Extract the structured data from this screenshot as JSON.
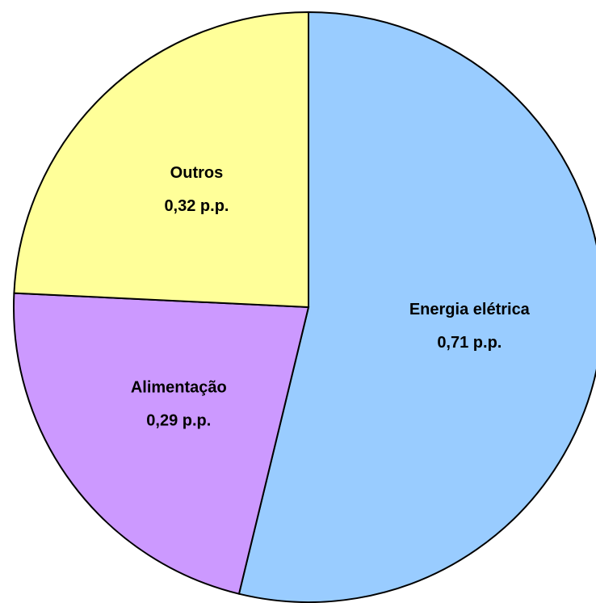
{
  "chart_data": {
    "type": "pie",
    "categories": [
      "Energia elétrica",
      "Alimentação",
      "Outros"
    ],
    "values": [
      0.71,
      0.29,
      0.32
    ],
    "value_labels": [
      "0,71 p.p.",
      "0,29 p.p.",
      "0,32 p.p."
    ],
    "colors": [
      "#99ccff",
      "#cc99ff",
      "#ffff99"
    ]
  }
}
